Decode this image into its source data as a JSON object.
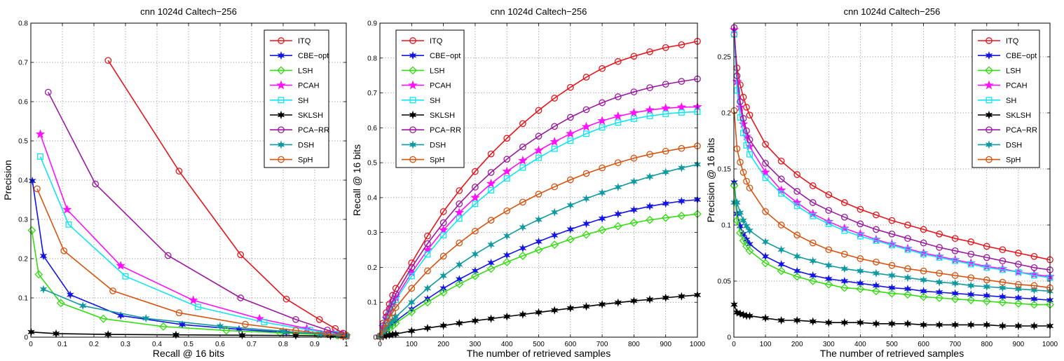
{
  "colors": {
    "ITQ": "#e8141b",
    "CBE-opt": "#1414e6",
    "LSH": "#33dd11",
    "PCAH": "#ff10ff",
    "SH": "#10e6f0",
    "SKLSH": "#000000",
    "PCA-RR": "#9a19a0",
    "DSH": "#109aa0",
    "SpH": "#d7530f"
  },
  "chart_data": [
    {
      "type": "line",
      "title": "cnn 1024d Caltech−256",
      "xlabel": "Recall @ 16 bits",
      "ylabel": "Precision",
      "xlim": [
        0,
        1
      ],
      "ylim": [
        0,
        0.8
      ],
      "xticks": [
        0,
        0.1,
        0.2,
        0.3,
        0.4,
        0.5,
        0.6,
        0.7,
        0.8,
        0.9,
        1
      ],
      "xtick_labels": [
        "0",
        "0.1",
        "0.2",
        "0.3",
        "0.4",
        "0.5",
        "0.6",
        "0.7",
        "0.8",
        "0.9",
        "1"
      ],
      "yticks": [
        0,
        0.1,
        0.2,
        0.3,
        0.4,
        0.5,
        0.6,
        0.7,
        0.8
      ],
      "ytick_labels": [
        "0",
        "0.1",
        "0.2",
        "0.3",
        "0.4",
        "0.5",
        "0.6",
        "0.7",
        "0.8"
      ],
      "grid": true,
      "legend_position": "top-right",
      "series": [
        {
          "name": "ITQ",
          "marker": "circle",
          "x": [
            0.245,
            0.47,
            0.665,
            0.81,
            0.915,
            0.965,
            0.99,
            1.0
          ],
          "y": [
            0.705,
            0.423,
            0.21,
            0.097,
            0.045,
            0.022,
            0.01,
            0.005
          ]
        },
        {
          "name": "CBE−opt",
          "marker": "star6",
          "x": [
            0.005,
            0.04,
            0.125,
            0.285,
            0.48,
            0.66,
            0.81,
            0.92,
            0.975,
            1.0
          ],
          "y": [
            0.398,
            0.207,
            0.108,
            0.055,
            0.032,
            0.02,
            0.012,
            0.008,
            0.005,
            0.003
          ]
        },
        {
          "name": "LSH",
          "marker": "diamond",
          "x": [
            0.003,
            0.025,
            0.095,
            0.23,
            0.42,
            0.62,
            0.79,
            0.91,
            0.97,
            1.0
          ],
          "y": [
            0.272,
            0.16,
            0.087,
            0.047,
            0.027,
            0.017,
            0.011,
            0.007,
            0.005,
            0.003
          ]
        },
        {
          "name": "PCAH",
          "marker": "star5",
          "x": [
            0.03,
            0.115,
            0.285,
            0.515,
            0.725,
            0.875,
            0.96,
            0.99,
            1.0
          ],
          "y": [
            0.517,
            0.325,
            0.182,
            0.094,
            0.047,
            0.022,
            0.01,
            0.005,
            0.003
          ]
        },
        {
          "name": "SH",
          "marker": "square",
          "x": [
            0.03,
            0.12,
            0.3,
            0.53,
            0.74,
            0.885,
            0.965,
            0.995,
            1.0
          ],
          "y": [
            0.46,
            0.287,
            0.155,
            0.077,
            0.038,
            0.018,
            0.008,
            0.004,
            0.003
          ]
        },
        {
          "name": "SKLSH",
          "marker": "star6",
          "x": [
            0.001,
            0.08,
            0.245,
            0.46,
            0.67,
            0.84,
            0.95,
            0.99,
            1.0
          ],
          "y": [
            0.013,
            0.009,
            0.007,
            0.006,
            0.005,
            0.004,
            0.003,
            0.002,
            0.002
          ]
        },
        {
          "name": "PCA−RR",
          "marker": "circle",
          "x": [
            0.055,
            0.205,
            0.435,
            0.665,
            0.84,
            0.94,
            0.985,
            1.0
          ],
          "y": [
            0.624,
            0.39,
            0.208,
            0.1,
            0.045,
            0.018,
            0.007,
            0.003
          ]
        },
        {
          "name": "DSH",
          "marker": "star6",
          "x": [
            0.04,
            0.165,
            0.365,
            0.6,
            0.8,
            0.92,
            0.975,
            1.0
          ],
          "y": [
            0.122,
            0.08,
            0.048,
            0.028,
            0.015,
            0.008,
            0.004,
            0.002
          ]
        },
        {
          "name": "SpH",
          "marker": "circle",
          "x": [
            0.02,
            0.105,
            0.26,
            0.47,
            0.68,
            0.84,
            0.94,
            0.985,
            1.0
          ],
          "y": [
            0.378,
            0.22,
            0.118,
            0.062,
            0.033,
            0.017,
            0.008,
            0.004,
            0.003
          ]
        }
      ]
    },
    {
      "type": "line",
      "title": "cnn 1024d Caltech−256",
      "xlabel": "The number of retrieved samples",
      "ylabel": "Recall @ 16 bits",
      "xlim": [
        0,
        1000
      ],
      "ylim": [
        0,
        0.9
      ],
      "xticks": [
        0,
        100,
        200,
        300,
        400,
        500,
        600,
        700,
        800,
        900,
        1000
      ],
      "xtick_labels": [
        "0",
        "100",
        "200",
        "300",
        "400",
        "500",
        "600",
        "700",
        "800",
        "900",
        "1000"
      ],
      "yticks": [
        0,
        0.1,
        0.2,
        0.3,
        0.4,
        0.5,
        0.6,
        0.7,
        0.8,
        0.9
      ],
      "ytick_labels": [
        "0",
        "0.1",
        "0.2",
        "0.3",
        "0.4",
        "0.5",
        "0.6",
        "0.7",
        "0.8",
        "0.9"
      ],
      "grid": true,
      "legend_position": "top-left",
      "x": [
        1,
        10,
        20,
        30,
        40,
        50,
        100,
        150,
        200,
        250,
        300,
        350,
        400,
        450,
        500,
        550,
        600,
        650,
        700,
        750,
        800,
        850,
        900,
        950,
        1000
      ],
      "series": [
        {
          "name": "ITQ",
          "marker": "circle",
          "values": [
            0.004,
            0.04,
            0.07,
            0.095,
            0.12,
            0.14,
            0.213,
            0.29,
            0.36,
            0.42,
            0.475,
            0.525,
            0.57,
            0.612,
            0.65,
            0.685,
            0.716,
            0.745,
            0.77,
            0.79,
            0.805,
            0.818,
            0.83,
            0.838,
            0.848
          ]
        },
        {
          "name": "CBE−opt",
          "marker": "star6",
          "values": [
            0.001,
            0.01,
            0.02,
            0.03,
            0.038,
            0.046,
            0.08,
            0.11,
            0.14,
            0.166,
            0.19,
            0.213,
            0.235,
            0.255,
            0.274,
            0.292,
            0.309,
            0.325,
            0.34,
            0.353,
            0.365,
            0.375,
            0.383,
            0.39,
            0.394
          ]
        },
        {
          "name": "LSH",
          "marker": "diamond",
          "values": [
            0.001,
            0.009,
            0.017,
            0.025,
            0.032,
            0.04,
            0.072,
            0.1,
            0.128,
            0.152,
            0.175,
            0.196,
            0.215,
            0.233,
            0.25,
            0.265,
            0.28,
            0.294,
            0.307,
            0.318,
            0.328,
            0.336,
            0.342,
            0.348,
            0.353
          ]
        },
        {
          "name": "PCAH",
          "marker": "star5",
          "values": [
            0.003,
            0.03,
            0.053,
            0.074,
            0.095,
            0.113,
            0.185,
            0.25,
            0.307,
            0.357,
            0.4,
            0.44,
            0.475,
            0.506,
            0.535,
            0.56,
            0.583,
            0.603,
            0.62,
            0.633,
            0.643,
            0.651,
            0.656,
            0.659,
            0.66
          ]
        },
        {
          "name": "SH",
          "marker": "square",
          "values": [
            0.003,
            0.028,
            0.05,
            0.07,
            0.09,
            0.107,
            0.175,
            0.237,
            0.292,
            0.34,
            0.382,
            0.421,
            0.455,
            0.486,
            0.514,
            0.54,
            0.563,
            0.583,
            0.601,
            0.615,
            0.626,
            0.634,
            0.64,
            0.644,
            0.646
          ]
        },
        {
          "name": "SKLSH",
          "marker": "star6",
          "values": [
            0.0,
            0.002,
            0.004,
            0.006,
            0.008,
            0.009,
            0.018,
            0.026,
            0.033,
            0.04,
            0.047,
            0.053,
            0.059,
            0.065,
            0.071,
            0.077,
            0.083,
            0.088,
            0.094,
            0.099,
            0.104,
            0.108,
            0.113,
            0.117,
            0.121
          ]
        },
        {
          "name": "PCA−RR",
          "marker": "circle",
          "values": [
            0.003,
            0.033,
            0.058,
            0.082,
            0.103,
            0.123,
            0.2,
            0.268,
            0.328,
            0.382,
            0.43,
            0.472,
            0.51,
            0.545,
            0.576,
            0.604,
            0.63,
            0.652,
            0.672,
            0.689,
            0.703,
            0.715,
            0.725,
            0.733,
            0.74
          ]
        },
        {
          "name": "DSH",
          "marker": "star6",
          "values": [
            0.002,
            0.014,
            0.026,
            0.037,
            0.048,
            0.058,
            0.1,
            0.14,
            0.176,
            0.208,
            0.238,
            0.265,
            0.29,
            0.315,
            0.337,
            0.358,
            0.378,
            0.397,
            0.414,
            0.43,
            0.446,
            0.46,
            0.473,
            0.485,
            0.495
          ]
        },
        {
          "name": "SpH",
          "marker": "circle",
          "values": [
            0.002,
            0.022,
            0.04,
            0.056,
            0.071,
            0.085,
            0.14,
            0.19,
            0.232,
            0.27,
            0.304,
            0.335,
            0.362,
            0.387,
            0.41,
            0.431,
            0.451,
            0.469,
            0.485,
            0.5,
            0.513,
            0.524,
            0.533,
            0.541,
            0.548
          ]
        }
      ]
    },
    {
      "type": "line",
      "title": "cnn 1024d Caltech−256",
      "xlabel": "The number of retrieved samples",
      "ylabel": "Precision @ 16 bits",
      "xlim": [
        0,
        1000
      ],
      "ylim": [
        0,
        0.28
      ],
      "xticks": [
        0,
        100,
        200,
        300,
        400,
        500,
        600,
        700,
        800,
        900,
        1000
      ],
      "xtick_labels": [
        "0",
        "100",
        "200",
        "300",
        "400",
        "500",
        "600",
        "700",
        "800",
        "900",
        "1000"
      ],
      "yticks": [
        0,
        0.05,
        0.1,
        0.15,
        0.2,
        0.25
      ],
      "ytick_labels": [
        "0",
        "0.05",
        "0.1",
        "0.15",
        "0.2",
        "0.25"
      ],
      "grid": true,
      "legend_position": "top-right",
      "x": [
        1,
        10,
        20,
        30,
        40,
        50,
        100,
        150,
        200,
        250,
        300,
        350,
        400,
        450,
        500,
        550,
        600,
        650,
        700,
        750,
        800,
        850,
        900,
        950,
        1000
      ],
      "series": [
        {
          "name": "ITQ",
          "marker": "circle",
          "values": [
            0.27,
            0.24,
            0.225,
            0.214,
            0.205,
            0.198,
            0.172,
            0.157,
            0.145,
            0.135,
            0.127,
            0.12,
            0.114,
            0.109,
            0.104,
            0.1,
            0.096,
            0.092,
            0.088,
            0.085,
            0.081,
            0.078,
            0.075,
            0.072,
            0.069
          ]
        },
        {
          "name": "CBE−opt",
          "marker": "star6",
          "values": [
            0.138,
            0.11,
            0.099,
            0.092,
            0.087,
            0.083,
            0.072,
            0.065,
            0.059,
            0.055,
            0.052,
            0.05,
            0.048,
            0.046,
            0.044,
            0.043,
            0.041,
            0.04,
            0.039,
            0.038,
            0.037,
            0.036,
            0.035,
            0.034,
            0.033
          ]
        },
        {
          "name": "LSH",
          "marker": "diamond",
          "values": [
            0.135,
            0.104,
            0.093,
            0.086,
            0.081,
            0.077,
            0.066,
            0.059,
            0.054,
            0.05,
            0.047,
            0.044,
            0.043,
            0.041,
            0.039,
            0.038,
            0.036,
            0.035,
            0.034,
            0.033,
            0.032,
            0.031,
            0.03,
            0.029,
            0.029
          ]
        },
        {
          "name": "PCAH",
          "marker": "star5",
          "values": [
            0.274,
            0.228,
            0.205,
            0.19,
            0.179,
            0.17,
            0.147,
            0.131,
            0.12,
            0.11,
            0.103,
            0.097,
            0.092,
            0.087,
            0.083,
            0.079,
            0.075,
            0.072,
            0.069,
            0.066,
            0.063,
            0.061,
            0.058,
            0.056,
            0.054
          ]
        },
        {
          "name": "SH",
          "marker": "square",
          "values": [
            0.27,
            0.22,
            0.196,
            0.182,
            0.171,
            0.163,
            0.142,
            0.128,
            0.117,
            0.108,
            0.101,
            0.095,
            0.09,
            0.086,
            0.082,
            0.078,
            0.074,
            0.071,
            0.068,
            0.065,
            0.062,
            0.06,
            0.058,
            0.055,
            0.053
          ]
        },
        {
          "name": "SKLSH",
          "marker": "star6",
          "values": [
            0.029,
            0.022,
            0.021,
            0.02,
            0.019,
            0.019,
            0.017,
            0.015,
            0.015,
            0.014,
            0.013,
            0.013,
            0.013,
            0.012,
            0.012,
            0.012,
            0.011,
            0.011,
            0.011,
            0.011,
            0.011,
            0.01,
            0.01,
            0.01,
            0.01
          ]
        },
        {
          "name": "PCA−RR",
          "marker": "circle",
          "values": [
            0.276,
            0.233,
            0.21,
            0.195,
            0.184,
            0.176,
            0.155,
            0.141,
            0.13,
            0.12,
            0.113,
            0.107,
            0.101,
            0.096,
            0.092,
            0.088,
            0.084,
            0.08,
            0.077,
            0.074,
            0.071,
            0.068,
            0.065,
            0.062,
            0.06
          ]
        },
        {
          "name": "DSH",
          "marker": "star6",
          "values": [
            0.12,
            0.12,
            0.111,
            0.104,
            0.099,
            0.095,
            0.085,
            0.078,
            0.072,
            0.068,
            0.064,
            0.061,
            0.059,
            0.057,
            0.055,
            0.053,
            0.051,
            0.049,
            0.048,
            0.046,
            0.045,
            0.044,
            0.043,
            0.042,
            0.041
          ]
        },
        {
          "name": "SpH",
          "marker": "circle",
          "values": [
            0.202,
            0.168,
            0.156,
            0.147,
            0.139,
            0.133,
            0.112,
            0.1,
            0.091,
            0.084,
            0.078,
            0.074,
            0.07,
            0.067,
            0.064,
            0.061,
            0.059,
            0.057,
            0.055,
            0.053,
            0.051,
            0.049,
            0.047,
            0.046,
            0.044
          ]
        }
      ]
    }
  ]
}
